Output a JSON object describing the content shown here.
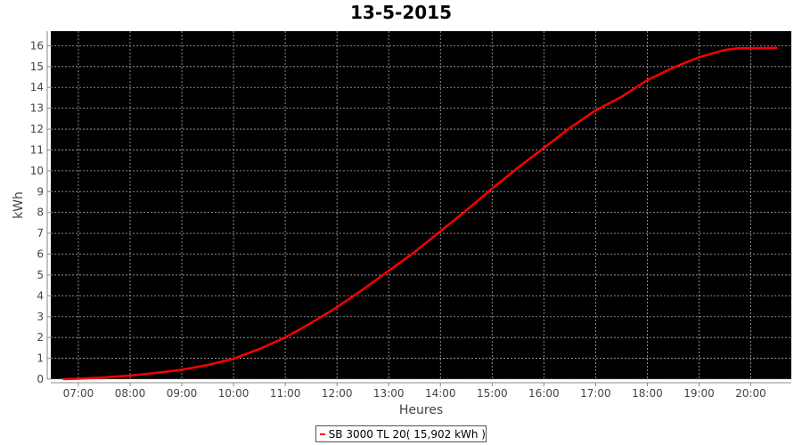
{
  "chart_data": {
    "type": "line",
    "title": "13-5-2015",
    "xlabel": "Heures",
    "ylabel": "kWh",
    "xlim": [
      "06:28",
      "20:47"
    ],
    "ylim": [
      0,
      16.7
    ],
    "x_ticks": [
      "07:00",
      "08:00",
      "09:00",
      "10:00",
      "11:00",
      "12:00",
      "13:00",
      "14:00",
      "15:00",
      "16:00",
      "17:00",
      "18:00",
      "19:00",
      "20:00"
    ],
    "y_ticks": [
      0,
      1,
      2,
      3,
      4,
      5,
      6,
      7,
      8,
      9,
      10,
      11,
      12,
      13,
      14,
      15,
      16
    ],
    "grid": true,
    "background": "#000000",
    "legend_position": "bottom",
    "series": [
      {
        "name": "SB 3000 TL 20( 15,902 kWh )",
        "color": "#ff0000",
        "x": [
          "06:42",
          "07:00",
          "07:30",
          "08:00",
          "08:30",
          "09:00",
          "09:30",
          "10:00",
          "10:30",
          "11:00",
          "11:30",
          "12:00",
          "12:30",
          "13:00",
          "13:30",
          "14:00",
          "14:30",
          "15:00",
          "15:30",
          "16:00",
          "16:30",
          "17:00",
          "17:30",
          "18:00",
          "18:30",
          "19:00",
          "19:30",
          "19:45",
          "20:00",
          "20:31"
        ],
        "y": [
          0,
          0.02,
          0.08,
          0.17,
          0.3,
          0.45,
          0.68,
          0.98,
          1.45,
          2.0,
          2.7,
          3.45,
          4.3,
          5.2,
          6.1,
          7.1,
          8.1,
          9.15,
          10.15,
          11.1,
          12.05,
          12.9,
          13.55,
          14.35,
          14.95,
          15.45,
          15.8,
          15.88,
          15.88,
          15.9
        ]
      }
    ]
  }
}
